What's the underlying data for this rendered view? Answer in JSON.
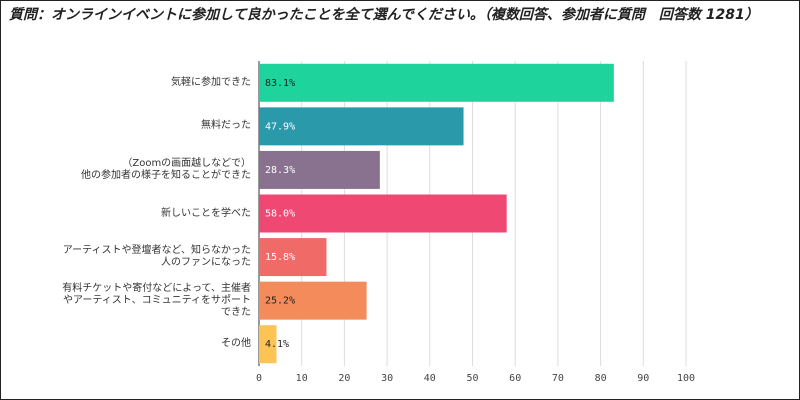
{
  "chart_data": {
    "type": "bar",
    "orientation": "horizontal",
    "title": "質問：オンラインイベントに参加して良かったことを全て選んでください。（複数回答、参加者に質問　回答数 1281）",
    "categories": [
      "気軽に参加できた",
      "無料だった",
      "（Zoomの画面越しなどで）\n他の参加者の様子を知ることができた",
      "新しいことを学べた",
      "アーティストや登壇者など、知らなかった\n人のファンになった",
      "有料チケットや寄付などによって、主催者\nやアーティスト、コミュニティをサポート\nできた",
      "その他"
    ],
    "values": [
      83.1,
      47.9,
      28.3,
      58.0,
      15.8,
      25.2,
      4.1
    ],
    "value_labels": [
      "83.1%",
      "47.9%",
      "28.3%",
      "58.0%",
      "15.8%",
      "25.2%",
      "4.1%"
    ],
    "colors": [
      "#1ed49c",
      "#2a9aab",
      "#88728f",
      "#ee4873",
      "#f06a68",
      "#f48b5a",
      "#fcc455"
    ],
    "xlim": [
      0,
      100
    ],
    "xticks": [
      0,
      10,
      20,
      30,
      40,
      50,
      60,
      70,
      80,
      90,
      100
    ],
    "grid": true
  }
}
